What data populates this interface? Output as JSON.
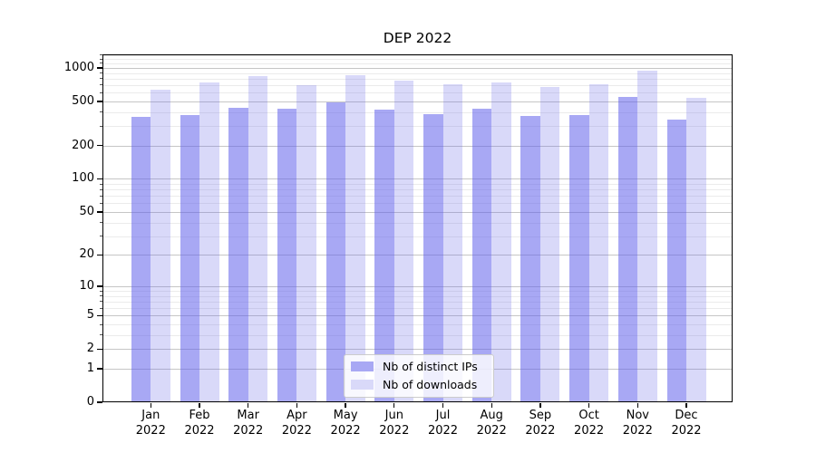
{
  "chart_data": {
    "type": "bar",
    "title": "DEP 2022",
    "y_scale": "log-like (position proportional to log10(value+1))",
    "ylim": [
      0,
      1340
    ],
    "grid": "horizontal, major + minor",
    "legend_position": "inside, bottom center",
    "categories": [
      "Jan 2022",
      "Feb 2022",
      "Mar 2022",
      "Apr 2022",
      "May 2022",
      "Jun 2022",
      "Jul 2022",
      "Aug 2022",
      "Sep 2022",
      "Oct 2022",
      "Nov 2022",
      "Dec 2022"
    ],
    "series": [
      {
        "name": "Nb of distinct IPs",
        "color": "#a8a8f4",
        "values": [
          360,
          375,
          435,
          430,
          490,
          425,
          385,
          430,
          372,
          375,
          550,
          340
        ]
      },
      {
        "name": "Nb of downloads",
        "color": "#d9d9f9",
        "values": [
          635,
          745,
          845,
          700,
          865,
          775,
          710,
          740,
          680,
          715,
          950,
          540
        ]
      }
    ],
    "y_ticks_major": [
      0,
      1,
      2,
      5,
      10,
      20,
      50,
      100,
      200,
      500,
      1000
    ],
    "y_ticks_minor": [
      3,
      4,
      6,
      7,
      8,
      9,
      30,
      40,
      60,
      70,
      80,
      90,
      300,
      400,
      600,
      700,
      800,
      900,
      1100,
      1200,
      1300
    ]
  },
  "colors": {
    "bar_distinct_ips": "#a8a8f4",
    "bar_downloads": "#d9d9f9",
    "grid_major": "#c6c6c6",
    "grid_minor": "#ebebeb",
    "axis": "#000000",
    "legend_border": "#cccccc"
  }
}
